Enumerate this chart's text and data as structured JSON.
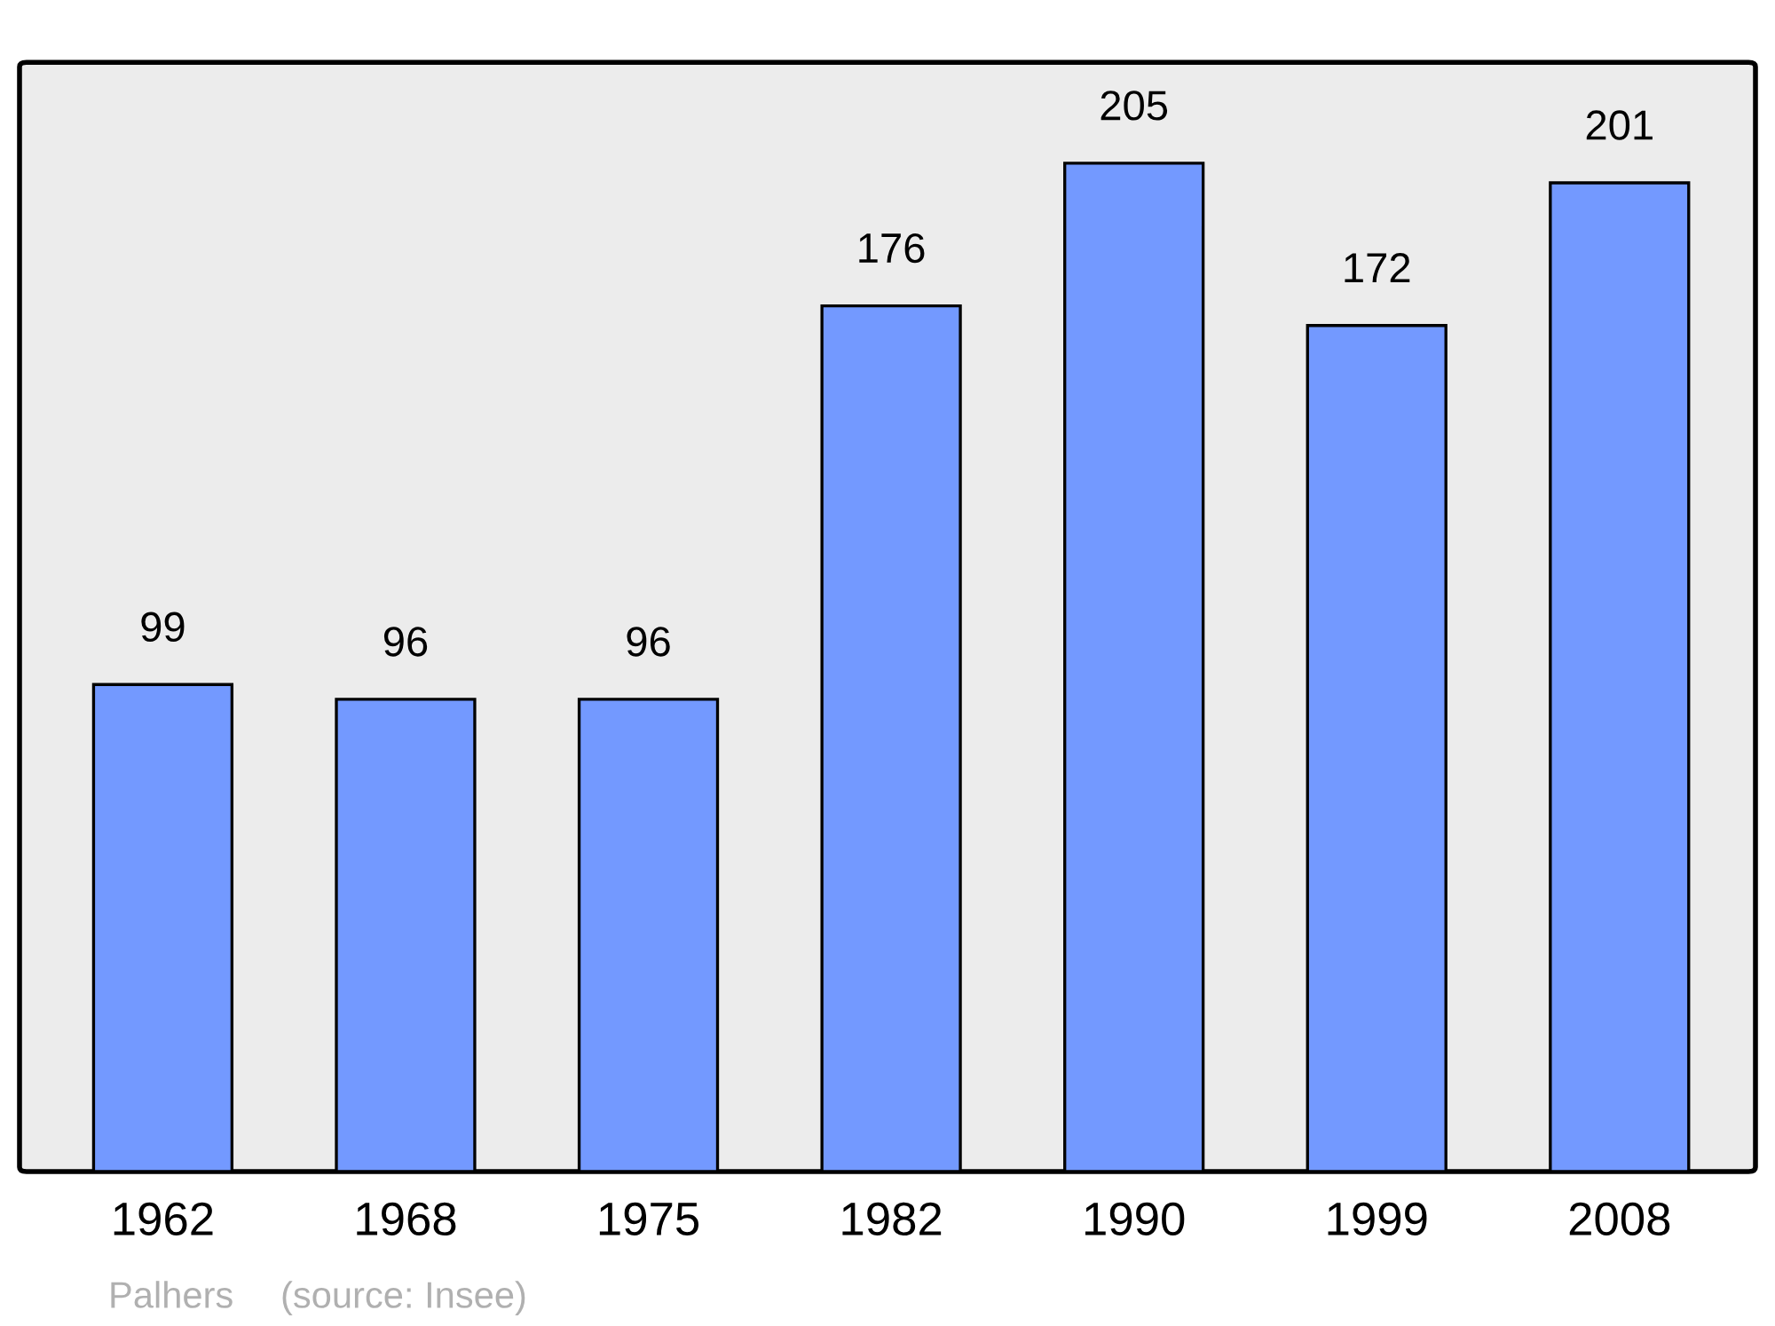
{
  "chart_data": {
    "type": "bar",
    "categories": [
      "1962",
      "1968",
      "1975",
      "1982",
      "1990",
      "1999",
      "2008"
    ],
    "values": [
      99,
      96,
      96,
      176,
      205,
      172,
      201
    ],
    "color": "#7399ff",
    "data_labels": true,
    "grid": false,
    "legend": false,
    "annotations": [
      "Palhers",
      "(source: Insee)"
    ]
  }
}
